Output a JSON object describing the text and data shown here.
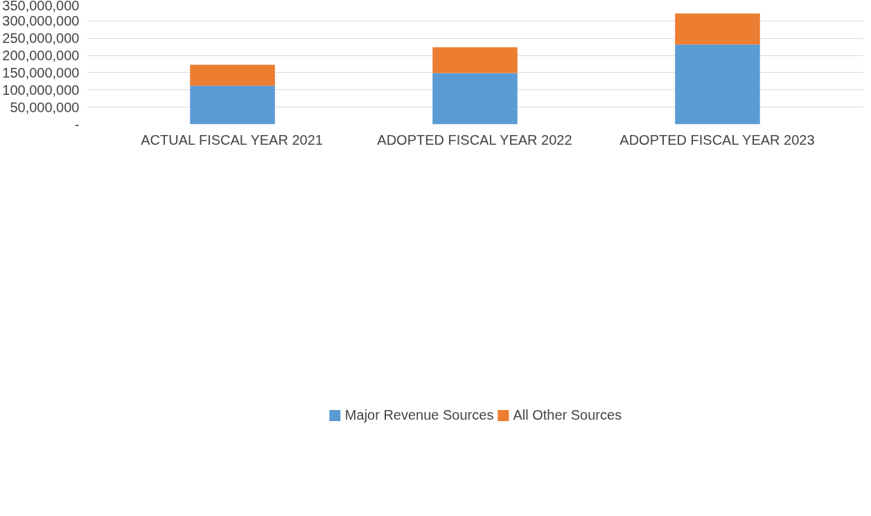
{
  "chart_data": {
    "type": "bar",
    "stacked": true,
    "categories": [
      "ACTUAL FISCAL YEAR 2021",
      "ADOPTED FISCAL YEAR 2022",
      "ADOPTED FISCAL YEAR 2023"
    ],
    "series": [
      {
        "name": "Major Revenue Sources",
        "color": "#5b9bd5",
        "values": [
          112000000,
          149000000,
          232000000
        ]
      },
      {
        "name": "All Other Sources",
        "color": "#ed7d31",
        "values": [
          61000000,
          75000000,
          90000000
        ]
      }
    ],
    "ylim": [
      0,
      350000000
    ],
    "yticks": [
      {
        "value": 0,
        "label": "-"
      },
      {
        "value": 50000000,
        "label": "50,000,000"
      },
      {
        "value": 100000000,
        "label": "100,000,000"
      },
      {
        "value": 150000000,
        "label": "150,000,000"
      },
      {
        "value": 200000000,
        "label": "200,000,000"
      },
      {
        "value": 250000000,
        "label": "250,000,000"
      },
      {
        "value": 300000000,
        "label": "300,000,000"
      },
      {
        "value": 350000000,
        "label": "350,000,000"
      }
    ],
    "grid": "y",
    "legend": "bottom"
  }
}
